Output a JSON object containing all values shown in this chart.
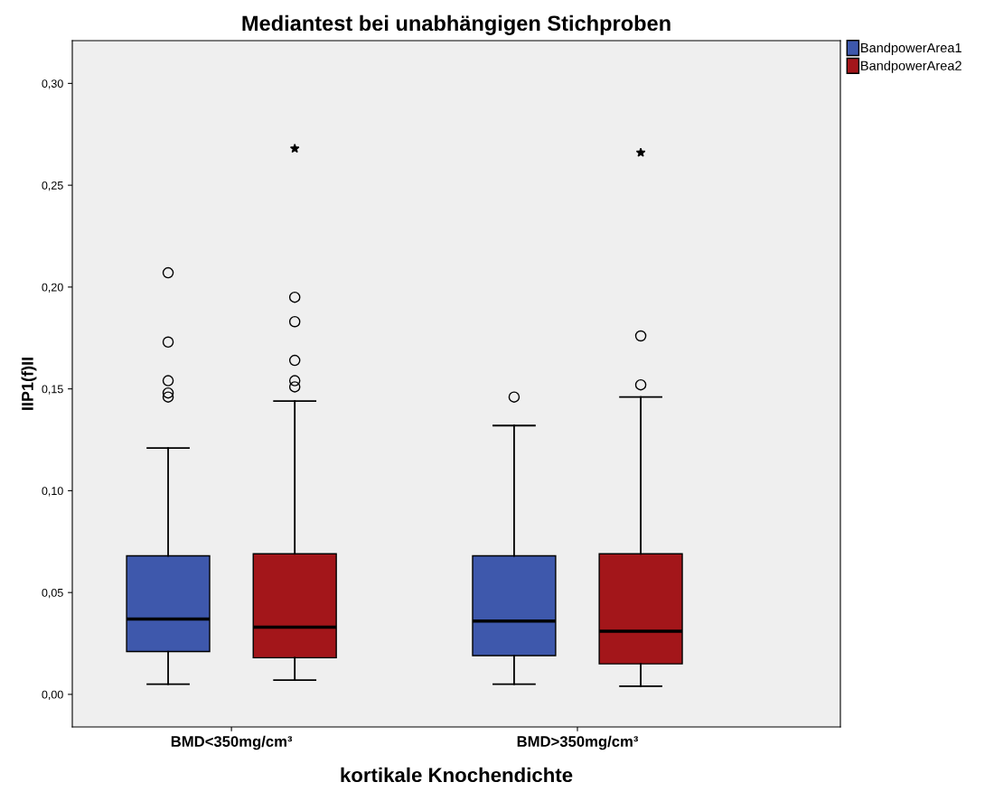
{
  "chart_data": {
    "type": "box",
    "title": "Mediantest bei unabhängigen Stichproben",
    "xlabel": "kortikale Knochendichte",
    "ylabel": "IIP1(f)II",
    "categories": [
      "BMD<350mg/cm³",
      "BMD>350mg/cm³"
    ],
    "series": [
      {
        "name": "BandpowerArea1",
        "color": "#3e58ac",
        "boxes": [
          {
            "low": 0.005,
            "q1": 0.021,
            "median": 0.037,
            "q3": 0.068,
            "high": 0.121,
            "outliers": [
              0.146,
              0.148,
              0.154,
              0.173,
              0.207
            ]
          },
          {
            "low": 0.005,
            "q1": 0.019,
            "median": 0.036,
            "q3": 0.068,
            "high": 0.132,
            "outliers": [
              0.146
            ]
          }
        ]
      },
      {
        "name": "BandpowerArea2",
        "color": "#a3161a",
        "boxes": [
          {
            "low": 0.007,
            "q1": 0.018,
            "median": 0.033,
            "q3": 0.069,
            "high": 0.144,
            "outliers": [
              0.151,
              0.154,
              0.164,
              0.183,
              0.195,
              0.268
            ]
          },
          {
            "low": 0.004,
            "q1": 0.015,
            "median": 0.031,
            "q3": 0.069,
            "high": 0.146,
            "outliers": [
              0.152,
              0.176,
              0.266
            ]
          }
        ]
      }
    ],
    "ylim": [
      -0.016,
      0.321
    ],
    "yticks": [
      {
        "value": 0,
        "label": "0,00"
      },
      {
        "value": 0.05,
        "label": "0,05"
      },
      {
        "value": 0.1,
        "label": "0,10"
      },
      {
        "value": 0.15,
        "label": "0,15"
      },
      {
        "value": 0.2,
        "label": "0,20"
      },
      {
        "value": 0.25,
        "label": "0,25"
      },
      {
        "value": 0.3,
        "label": "0,30"
      }
    ],
    "grid": false,
    "legend": "top right"
  }
}
